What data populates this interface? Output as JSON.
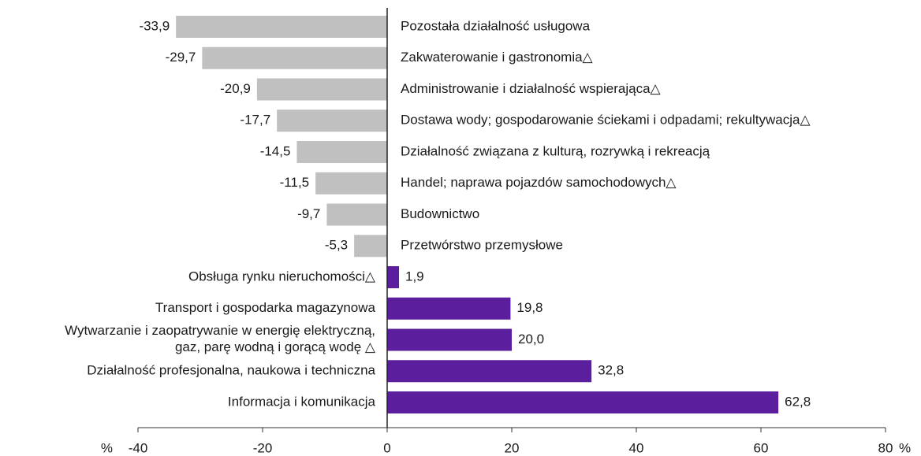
{
  "chart_data": {
    "type": "hbar",
    "categories": [
      "Pozostała działalność usługowa",
      "Zakwaterowanie i gastronomia△",
      "Administrowanie i działalność wspierająca△",
      "Dostawa wody; gospodarowanie ściekami i odpadami; rekultywacja△",
      "Działalność związana z kulturą, rozrywką i rekreacją",
      "Handel; naprawa pojazdów samochodowych△",
      "Budownictwo",
      "Przetwórstwo przemysłowe",
      "Obsługa rynku nieruchomości△",
      "Transport i gospodarka magazynowa",
      "Wytwarzanie i zaopatrywanie w energię elektryczną,\ngaz, parę wodną i gorącą wodę △",
      "Działalność profesjonalna, naukowa i techniczna",
      "Informacja i komunikacja"
    ],
    "values": [
      -33.9,
      -29.7,
      -20.9,
      -17.7,
      -14.5,
      -11.5,
      -9.7,
      -5.3,
      1.9,
      19.8,
      20.0,
      32.8,
      62.8
    ],
    "value_labels": [
      "-33,9",
      "-29,7",
      "-20,9",
      "-17,7",
      "-14,5",
      "-11,5",
      "-9,7",
      "-5,3",
      "1,9",
      "19,8",
      "20,0",
      "32,8",
      "62,8"
    ],
    "colors": [
      "#c0c0c0",
      "#c0c0c0",
      "#c0c0c0",
      "#c0c0c0",
      "#c0c0c0",
      "#c0c0c0",
      "#c0c0c0",
      "#c0c0c0",
      "#5b1f9e",
      "#5b1f9e",
      "#5b1f9e",
      "#5b1f9e",
      "#5b1f9e"
    ],
    "xlim": [
      -40,
      80
    ],
    "xticks": [
      -40,
      -20,
      0,
      20,
      40,
      60,
      80
    ],
    "x_unit": "%"
  }
}
